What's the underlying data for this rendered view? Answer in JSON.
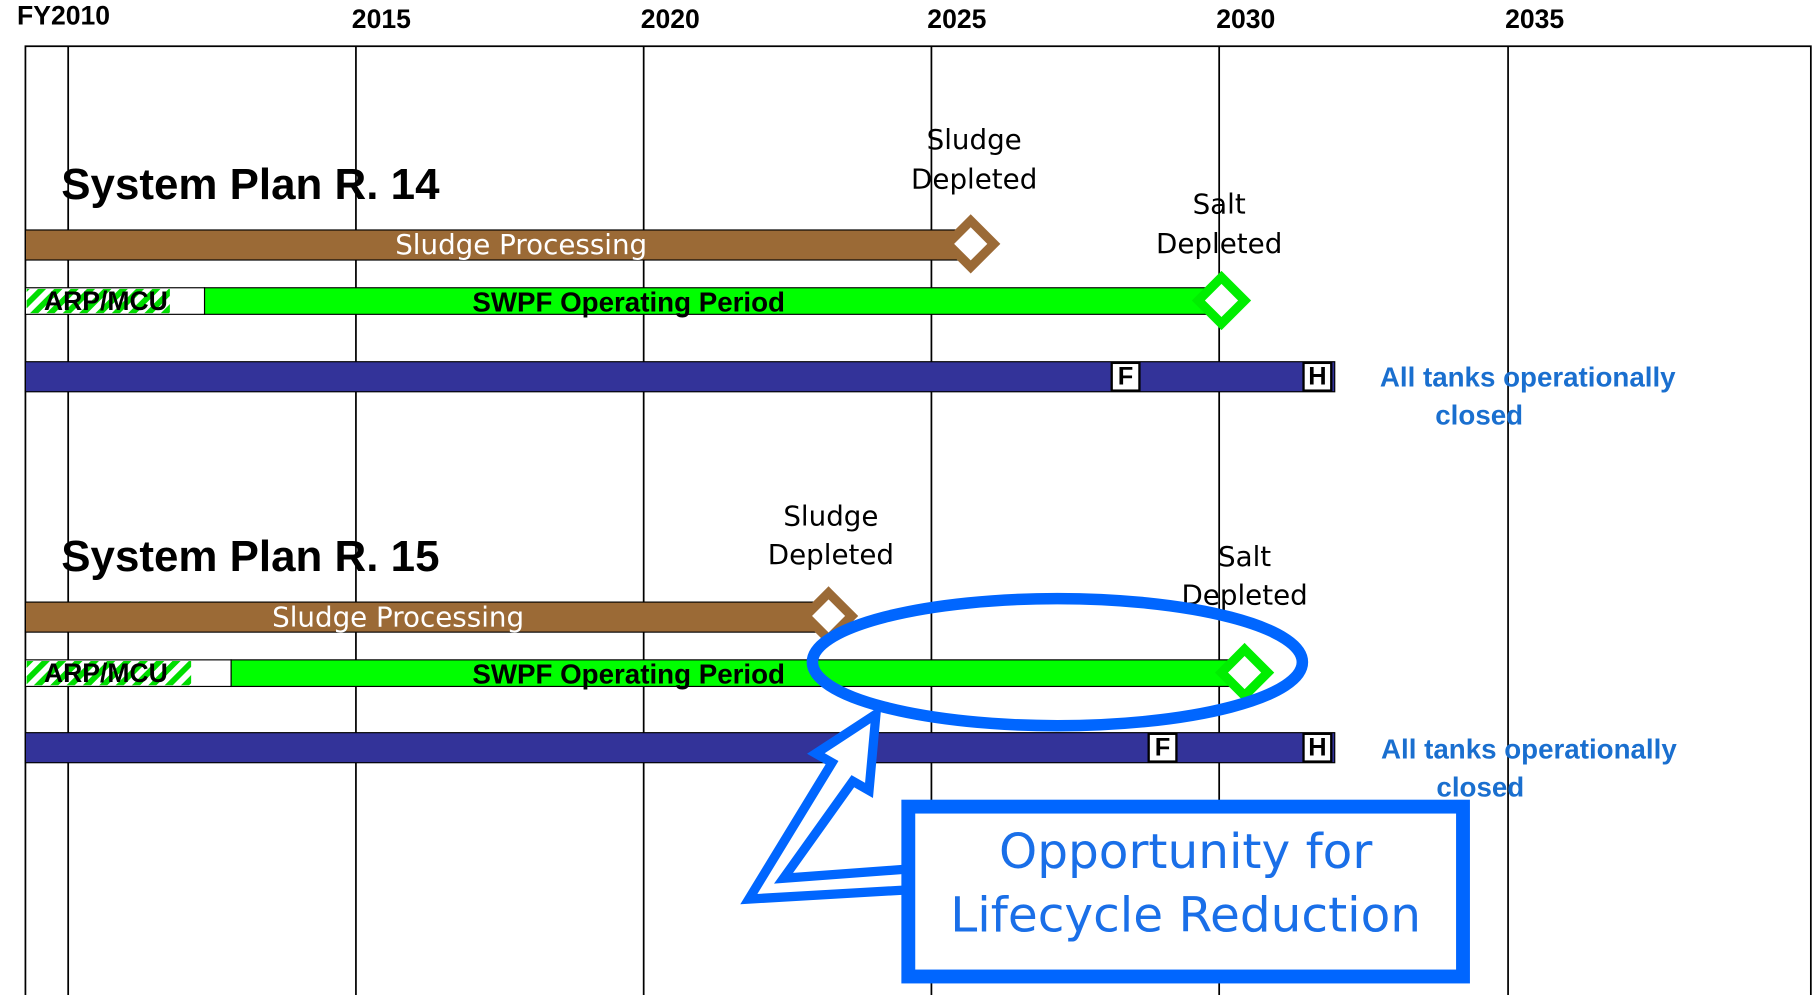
{
  "axis": {
    "labels": [
      "FY2010",
      "2015",
      "2020",
      "2025",
      "2030",
      "2035"
    ]
  },
  "plans": [
    {
      "title": "System Plan R. 14",
      "sludge_label": "Sludge Processing",
      "sludge_milestone": [
        "Sludge",
        "Depleted"
      ],
      "arp_label": "ARP/MCU",
      "swpf_label": "SWPF Operating Period",
      "salt_milestone": [
        "Salt",
        "Depleted"
      ],
      "f_label": "F",
      "h_label": "H",
      "closed_label": [
        "All tanks operationally",
        "closed"
      ]
    },
    {
      "title": "System Plan R. 15",
      "sludge_label": "Sludge Processing",
      "sludge_milestone": [
        "Sludge",
        "Depleted"
      ],
      "arp_label": "ARP/MCU",
      "swpf_label": "SWPF Operating Period",
      "salt_milestone": [
        "Salt",
        "Depleted"
      ],
      "f_label": "F",
      "h_label": "H",
      "closed_label": [
        "All tanks operationally",
        "closed"
      ]
    }
  ],
  "callout": [
    "Opportunity for",
    "Lifecycle Reduction"
  ]
}
